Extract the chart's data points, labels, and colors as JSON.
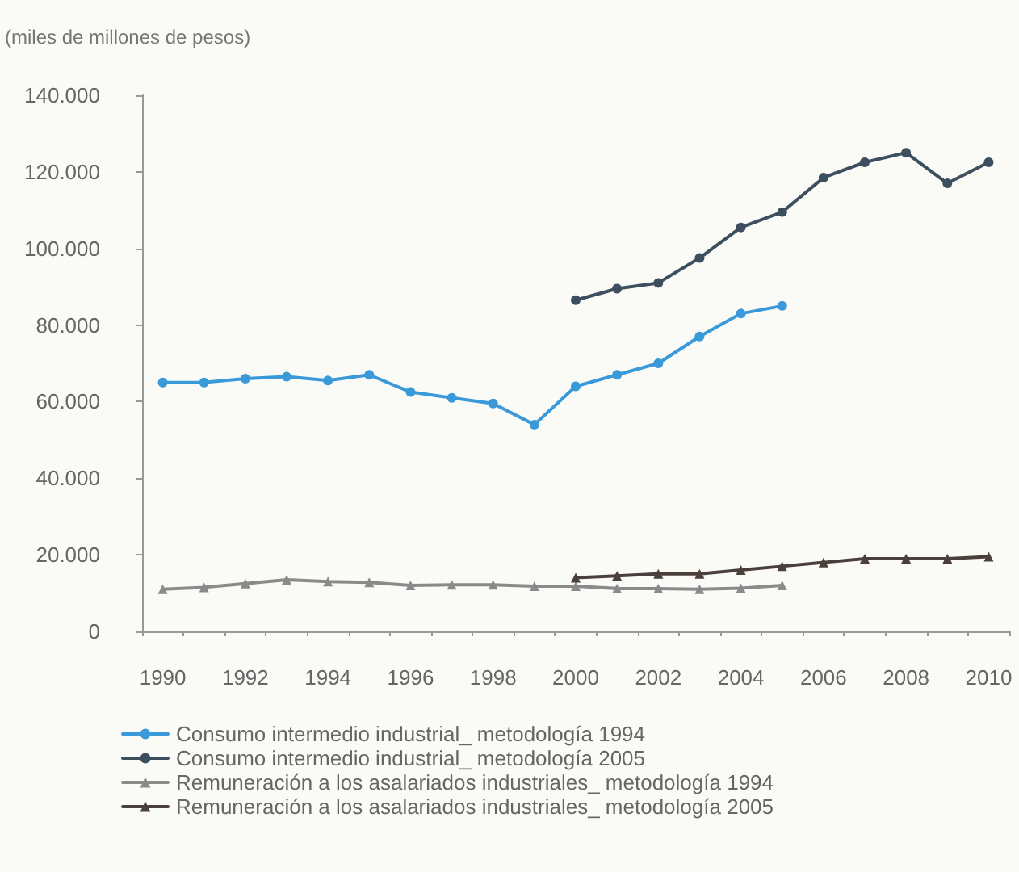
{
  "chart_data": {
    "type": "line",
    "ylabel": "(miles de millones de pesos)",
    "categories": [
      "1990",
      null,
      "1992",
      null,
      "1994",
      null,
      "1996",
      null,
      "1998",
      null,
      "2000",
      null,
      "2002",
      null,
      "2004",
      null,
      "2006",
      null,
      "2008",
      null,
      "2010"
    ],
    "ylim": [
      0,
      140000
    ],
    "yticks": [
      {
        "value": 0,
        "label": "0"
      },
      {
        "value": 20000,
        "label": "20.000"
      },
      {
        "value": 40000,
        "label": "40.000"
      },
      {
        "value": 60000,
        "label": "60.000"
      },
      {
        "value": 80000,
        "label": "80.000"
      },
      {
        "value": 100000,
        "label": "100.000"
      },
      {
        "value": 120000,
        "label": "120.000"
      },
      {
        "value": 140000,
        "label": "140.000"
      }
    ],
    "grid": false,
    "legend": "bottom",
    "line_style": "solid",
    "series": [
      {
        "name": "Consumo intermedio industrial_ metodología 1994",
        "color": "#3a9ad9",
        "marker": "circle",
        "values": [
          65000,
          65000,
          66000,
          66500,
          65500,
          67000,
          62500,
          61000,
          59500,
          54000,
          64000,
          67000,
          70000,
          77000,
          83000,
          85000,
          null,
          null,
          null,
          null,
          null
        ]
      },
      {
        "name": "Consumo intermedio industrial_ metodología 2005",
        "color": "#3d4f5f",
        "marker": "circle",
        "values": [
          null,
          null,
          null,
          null,
          null,
          null,
          null,
          null,
          null,
          null,
          86500,
          89500,
          91000,
          97500,
          105500,
          109500,
          118500,
          122500,
          125000,
          117000,
          122500
        ]
      },
      {
        "name": "Remuneración a los asalariados industriales_ metodología 1994",
        "color": "#8a8a8a",
        "marker": "triangle",
        "values": [
          11000,
          11500,
          12500,
          13500,
          13000,
          12800,
          12000,
          12200,
          12200,
          11800,
          11800,
          11200,
          11200,
          11000,
          11300,
          12000,
          null,
          null,
          null,
          null,
          null
        ]
      },
      {
        "name": "Remuneración a los asalariados industriales_ metodología 2005",
        "color": "#4a3f3a",
        "marker": "triangle",
        "values": [
          null,
          null,
          null,
          null,
          null,
          null,
          null,
          null,
          null,
          null,
          14000,
          14500,
          15000,
          15000,
          16000,
          17000,
          18000,
          19000,
          19000,
          19000,
          19500
        ]
      }
    ]
  }
}
